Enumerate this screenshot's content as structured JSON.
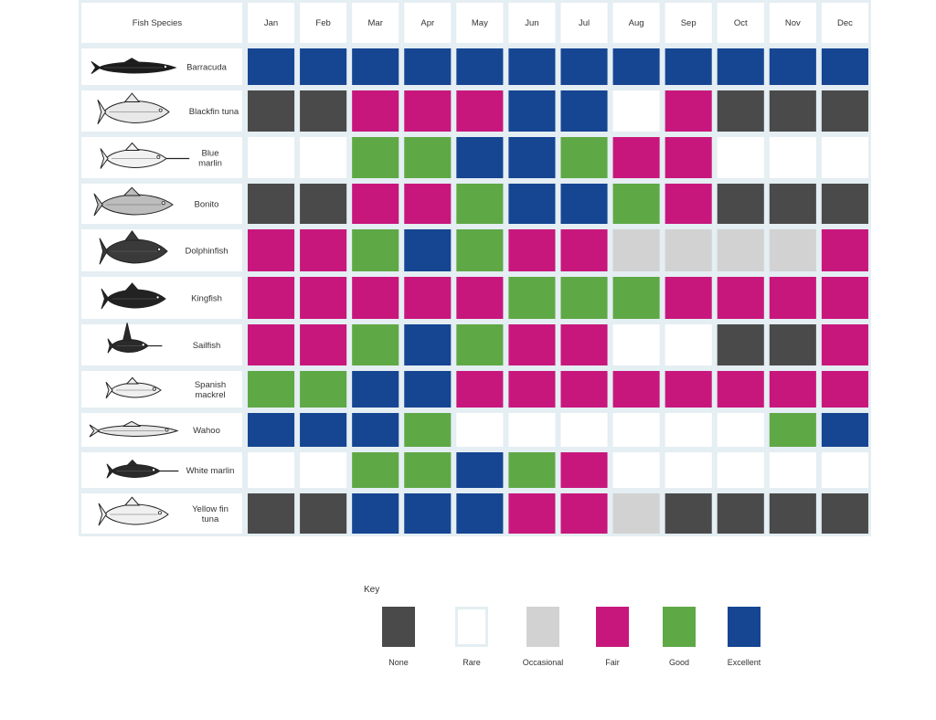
{
  "chart_data": {
    "type": "heatmap",
    "row_header": "Fish Species",
    "months": [
      "Jan",
      "Feb",
      "Mar",
      "Apr",
      "May",
      "Jun",
      "Jul",
      "Aug",
      "Sep",
      "Oct",
      "Nov",
      "Dec"
    ],
    "species": [
      {
        "name": "Barracuda",
        "values": [
          "Excellent",
          "Excellent",
          "Excellent",
          "Excellent",
          "Excellent",
          "Excellent",
          "Excellent",
          "Excellent",
          "Excellent",
          "Excellent",
          "Excellent",
          "Excellent"
        ]
      },
      {
        "name": "Blackfin tuna",
        "values": [
          "None",
          "None",
          "Fair",
          "Fair",
          "Fair",
          "Excellent",
          "Excellent",
          "Rare",
          "Fair",
          "None",
          "None",
          "None"
        ]
      },
      {
        "name": "Blue marlin",
        "values": [
          "Rare",
          "Rare",
          "Good",
          "Good",
          "Excellent",
          "Excellent",
          "Good",
          "Fair",
          "Fair",
          "Rare",
          "Rare",
          "Rare"
        ]
      },
      {
        "name": "Bonito",
        "values": [
          "None",
          "None",
          "Fair",
          "Fair",
          "Good",
          "Excellent",
          "Excellent",
          "Good",
          "Fair",
          "None",
          "None",
          "None"
        ]
      },
      {
        "name": "Dolphinfish",
        "values": [
          "Fair",
          "Fair",
          "Good",
          "Excellent",
          "Good",
          "Fair",
          "Fair",
          "Occasional",
          "Occasional",
          "Occasional",
          "Occasional",
          "Fair"
        ]
      },
      {
        "name": "Kingfish",
        "values": [
          "Fair",
          "Fair",
          "Fair",
          "Fair",
          "Fair",
          "Good",
          "Good",
          "Good",
          "Fair",
          "Fair",
          "Fair",
          "Fair"
        ]
      },
      {
        "name": "Sailfish",
        "values": [
          "Fair",
          "Fair",
          "Good",
          "Excellent",
          "Good",
          "Fair",
          "Fair",
          "Rare",
          "Rare",
          "None",
          "None",
          "Fair"
        ]
      },
      {
        "name": "Spanish mackrel",
        "values": [
          "Good",
          "Good",
          "Excellent",
          "Excellent",
          "Fair",
          "Fair",
          "Fair",
          "Fair",
          "Fair",
          "Fair",
          "Fair",
          "Fair"
        ]
      },
      {
        "name": "Wahoo",
        "values": [
          "Excellent",
          "Excellent",
          "Excellent",
          "Good",
          "Rare",
          "Rare",
          "Rare",
          "Rare",
          "Rare",
          "Rare",
          "Good",
          "Excellent"
        ]
      },
      {
        "name": "White marlin",
        "values": [
          "Rare",
          "Rare",
          "Good",
          "Good",
          "Excellent",
          "Good",
          "Fair",
          "Rare",
          "Rare",
          "Rare",
          "Rare",
          "Rare"
        ]
      },
      {
        "name": "Yellow fin tuna",
        "values": [
          "None",
          "None",
          "Excellent",
          "Excellent",
          "Excellent",
          "Fair",
          "Fair",
          "Occasional",
          "None",
          "None",
          "None",
          "None"
        ]
      }
    ],
    "key_title": "Key",
    "categories": [
      "None",
      "Rare",
      "Occasional",
      "Fair",
      "Good",
      "Excellent"
    ],
    "colors": {
      "None": "#4a4a4a",
      "Rare": "#ffffff",
      "Occasional": "#d2d2d2",
      "Fair": "#c8177c",
      "Good": "#5fa846",
      "Excellent": "#164592",
      "border": "#e4eef3",
      "label": "#333333"
    }
  }
}
